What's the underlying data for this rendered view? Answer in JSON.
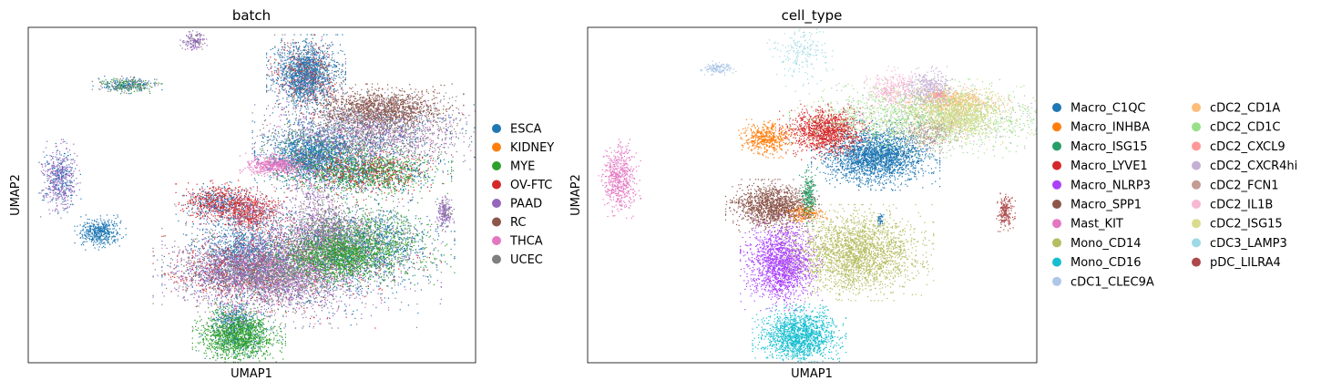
{
  "chart_data": [
    {
      "type": "scatter",
      "title": "batch",
      "xlabel": "UMAP1",
      "ylabel": "UMAP2",
      "grid": false,
      "ticks": "none",
      "legend_placement": "right",
      "legend_columns": 1,
      "series": [
        {
          "name": "ESCA",
          "color": "#1f77b4"
        },
        {
          "name": "KIDNEY",
          "color": "#ff7f0e"
        },
        {
          "name": "MYE",
          "color": "#2ca02c"
        },
        {
          "name": "OV-FTC",
          "color": "#d62728"
        },
        {
          "name": "PAAD",
          "color": "#9467bd"
        },
        {
          "name": "RC",
          "color": "#8c564b"
        },
        {
          "name": "THCA",
          "color": "#e377c2"
        },
        {
          "name": "UCEC",
          "color": "#7f7f7f"
        }
      ],
      "clusters": [
        {
          "c": 0.62,
          "r": 0.14,
          "sx": 0.034,
          "sy": 0.046,
          "n": 2200,
          "mix": {
            "ESCA": 0.6,
            "UCEC": 0.2,
            "OV-FTC": 0.12,
            "PAAD": 0.08
          }
        },
        {
          "c": 0.48,
          "r": 0.67,
          "sx": 0.05,
          "sy": 0.048,
          "n": 1000,
          "mix": {
            "ESCA": 0.9,
            "PAAD": 0.1
          }
        },
        {
          "c": 0.64,
          "r": 0.38,
          "sx": 0.052,
          "sy": 0.038,
          "n": 2000,
          "mix": {
            "ESCA": 0.8,
            "MYE": 0.12,
            "UCEC": 0.08
          }
        },
        {
          "c": 0.5,
          "r": 0.55,
          "sx": 0.032,
          "sy": 0.028,
          "n": 800,
          "mix": {
            "OV-FTC": 0.55,
            "PAAD": 0.25,
            "UCEC": 0.2
          }
        },
        {
          "c": 0.75,
          "r": 0.43,
          "sx": 0.075,
          "sy": 0.032,
          "n": 1900,
          "mix": {
            "MYE": 0.45,
            "OV-FTC": 0.3,
            "ESCA": 0.25
          }
        },
        {
          "c": 0.61,
          "r": 0.7,
          "sx": 0.12,
          "sy": 0.075,
          "n": 2600,
          "mix": {
            "PAAD": 0.35,
            "ESCA": 0.25,
            "UCEC": 0.2,
            "OV-FTC": 0.1,
            "THCA": 0.1
          }
        },
        {
          "c": 0.64,
          "r": 0.57,
          "sx": 0.035,
          "sy": 0.12,
          "n": 700,
          "mix": {
            "PAAD": 0.5,
            "UCEC": 0.3,
            "THCA": 0.2
          }
        },
        {
          "c": 0.77,
          "r": 0.64,
          "sx": 0.07,
          "sy": 0.05,
          "n": 1600,
          "mix": {
            "MYE": 0.45,
            "ESCA": 0.4,
            "UCEC": 0.15
          }
        },
        {
          "c": 0.22,
          "r": 0.17,
          "sx": 0.03,
          "sy": 0.01,
          "n": 400,
          "mix": {
            "ESCA": 0.4,
            "MYE": 0.25,
            "UCEC": 0.35
          }
        },
        {
          "c": 0.37,
          "r": 0.04,
          "sx": 0.012,
          "sy": 0.012,
          "n": 150,
          "mix": {
            "PAAD": 0.75,
            "UCEC": 0.25
          }
        },
        {
          "c": 0.76,
          "r": 0.31,
          "sx": 0.1,
          "sy": 0.045,
          "n": 2300,
          "mix": {
            "UCEC": 0.45,
            "PAAD": 0.3,
            "ESCA": 0.15,
            "THCA": 0.1
          }
        },
        {
          "c": 0.79,
          "r": 0.24,
          "sx": 0.07,
          "sy": 0.028,
          "n": 1300,
          "mix": {
            "RC": 0.9,
            "UCEC": 0.1
          }
        },
        {
          "c": 0.55,
          "r": 0.41,
          "sx": 0.03,
          "sy": 0.014,
          "n": 500,
          "mix": {
            "THCA": 1.0
          }
        },
        {
          "c": 0.46,
          "r": 0.73,
          "sx": 0.07,
          "sy": 0.045,
          "n": 1900,
          "mix": {
            "PAAD": 0.5,
            "UCEC": 0.3,
            "OV-FTC": 0.2
          }
        },
        {
          "c": 0.56,
          "r": 0.73,
          "sx": 0.06,
          "sy": 0.05,
          "n": 1700,
          "mix": {
            "UCEC": 0.5,
            "PAAD": 0.3,
            "THCA": 0.2
          }
        },
        {
          "c": 0.07,
          "r": 0.45,
          "sx": 0.018,
          "sy": 0.045,
          "n": 600,
          "mix": {
            "PAAD": 0.7,
            "ESCA": 0.3
          }
        },
        {
          "c": 0.16,
          "r": 0.61,
          "sx": 0.022,
          "sy": 0.02,
          "n": 450,
          "mix": {
            "ESCA": 1.0
          }
        },
        {
          "c": 0.67,
          "r": 0.61,
          "sx": 0.04,
          "sy": 0.035,
          "n": 700,
          "mix": {
            "UCEC": 0.7,
            "PAAD": 0.3
          }
        },
        {
          "c": 0.46,
          "r": 0.87,
          "sx": 0.025,
          "sy": 0.03,
          "n": 500,
          "mix": {
            "ESCA": 0.6,
            "THCA": 0.2,
            "MYE": 0.2
          }
        },
        {
          "c": 0.47,
          "r": 0.92,
          "sx": 0.04,
          "sy": 0.033,
          "n": 1500,
          "mix": {
            "MYE": 0.9,
            "ESCA": 0.1
          }
        },
        {
          "c": 0.93,
          "r": 0.55,
          "sx": 0.008,
          "sy": 0.022,
          "n": 200,
          "mix": {
            "PAAD": 0.7,
            "UCEC": 0.3
          }
        },
        {
          "c": 0.69,
          "r": 0.68,
          "sx": 0.06,
          "sy": 0.035,
          "n": 1500,
          "mix": {
            "MYE": 0.85,
            "ESCA": 0.1,
            "RC": 0.05
          }
        },
        {
          "c": 0.42,
          "r": 0.52,
          "sx": 0.035,
          "sy": 0.025,
          "n": 800,
          "mix": {
            "OV-FTC": 0.6,
            "ESCA": 0.3,
            "PAAD": 0.1
          }
        }
      ]
    },
    {
      "type": "scatter",
      "title": "cell_type",
      "xlabel": "UMAP1",
      "ylabel": "UMAP2",
      "grid": false,
      "ticks": "none",
      "legend_placement": "right",
      "legend_columns": 2,
      "series": [
        {
          "name": "Macro_C1QC",
          "color": "#1f77b4"
        },
        {
          "name": "Macro_INHBA",
          "color": "#ff7f0e"
        },
        {
          "name": "Macro_ISG15",
          "color": "#279e68"
        },
        {
          "name": "Macro_LYVE1",
          "color": "#d62728"
        },
        {
          "name": "Macro_NLRP3",
          "color": "#aa40fc"
        },
        {
          "name": "Macro_SPP1",
          "color": "#8c564b"
        },
        {
          "name": "Mast_KIT",
          "color": "#e377c2"
        },
        {
          "name": "Mono_CD14",
          "color": "#b5bd61"
        },
        {
          "name": "Mono_CD16",
          "color": "#17becf"
        },
        {
          "name": "cDC1_CLEC9A",
          "color": "#aec7e8"
        },
        {
          "name": "cDC2_CD1A",
          "color": "#ffbb78"
        },
        {
          "name": "cDC2_CD1C",
          "color": "#98df8a"
        },
        {
          "name": "cDC2_CXCL9",
          "color": "#ff9896"
        },
        {
          "name": "cDC2_CXCR4hi",
          "color": "#c5b0d5"
        },
        {
          "name": "cDC2_FCN1",
          "color": "#c49c94"
        },
        {
          "name": "cDC2_IL1B",
          "color": "#f7b6d2"
        },
        {
          "name": "cDC2_ISG15",
          "color": "#dbdb8d"
        },
        {
          "name": "cDC3_LAMP3",
          "color": "#9edae5"
        },
        {
          "name": "pDC_LILRA4",
          "color": "#ad494a"
        }
      ],
      "clusters": [
        {
          "c": 0.64,
          "r": 0.38,
          "sx": 0.055,
          "sy": 0.04,
          "n": 2400,
          "mix": {
            "Macro_C1QC": 1.0
          }
        },
        {
          "c": 0.4,
          "r": 0.33,
          "sx": 0.025,
          "sy": 0.022,
          "n": 500,
          "mix": {
            "Macro_INHBA": 1.0
          }
        },
        {
          "c": 0.48,
          "r": 0.55,
          "sx": 0.02,
          "sy": 0.012,
          "n": 250,
          "mix": {
            "Macro_INHBA": 1.0
          }
        },
        {
          "c": 0.49,
          "r": 0.5,
          "sx": 0.008,
          "sy": 0.035,
          "n": 250,
          "mix": {
            "Macro_ISG15": 1.0
          }
        },
        {
          "c": 0.53,
          "r": 0.31,
          "sx": 0.04,
          "sy": 0.032,
          "n": 1200,
          "mix": {
            "Macro_LYVE1": 1.0
          }
        },
        {
          "c": 0.43,
          "r": 0.7,
          "sx": 0.035,
          "sy": 0.055,
          "n": 1800,
          "mix": {
            "Macro_NLRP3": 1.0
          }
        },
        {
          "c": 0.41,
          "r": 0.53,
          "sx": 0.04,
          "sy": 0.03,
          "n": 1300,
          "mix": {
            "Macro_SPP1": 1.0
          }
        },
        {
          "c": 0.07,
          "r": 0.45,
          "sx": 0.018,
          "sy": 0.045,
          "n": 600,
          "mix": {
            "Mast_KIT": 1.0
          }
        },
        {
          "c": 0.6,
          "r": 0.67,
          "sx": 0.065,
          "sy": 0.055,
          "n": 2400,
          "mix": {
            "Mono_CD14": 1.0
          }
        },
        {
          "c": 0.47,
          "r": 0.92,
          "sx": 0.04,
          "sy": 0.037,
          "n": 1600,
          "mix": {
            "Mono_CD16": 1.0
          }
        },
        {
          "c": 0.29,
          "r": 0.12,
          "sx": 0.015,
          "sy": 0.008,
          "n": 150,
          "mix": {
            "cDC1_CLEC9A": 1.0
          }
        },
        {
          "c": 0.81,
          "r": 0.22,
          "sx": 0.05,
          "sy": 0.02,
          "n": 600,
          "mix": {
            "cDC2_CD1A": 1.0
          }
        },
        {
          "c": 0.76,
          "r": 0.27,
          "sx": 0.12,
          "sy": 0.045,
          "n": 2200,
          "mix": {
            "cDC2_CD1C": 0.7,
            "cDC2_ISG15": 0.15,
            "cDC2_CXCR4hi": 0.15
          }
        },
        {
          "c": 0.78,
          "r": 0.2,
          "sx": 0.008,
          "sy": 0.005,
          "n": 80,
          "mix": {
            "cDC2_CXCL9": 1.0
          }
        },
        {
          "c": 0.76,
          "r": 0.18,
          "sx": 0.025,
          "sy": 0.025,
          "n": 400,
          "mix": {
            "cDC2_CXCR4hi": 1.0
          }
        },
        {
          "c": 0.76,
          "r": 0.31,
          "sx": 0.03,
          "sy": 0.025,
          "n": 300,
          "mix": {
            "cDC2_FCN1": 1.0
          }
        },
        {
          "c": 0.68,
          "r": 0.18,
          "sx": 0.025,
          "sy": 0.025,
          "n": 300,
          "mix": {
            "cDC2_IL1B": 1.0
          }
        },
        {
          "c": 0.83,
          "r": 0.26,
          "sx": 0.04,
          "sy": 0.03,
          "n": 800,
          "mix": {
            "cDC2_ISG15": 1.0
          }
        },
        {
          "c": 0.47,
          "r": 0.07,
          "sx": 0.03,
          "sy": 0.04,
          "n": 200,
          "mix": {
            "cDC3_LAMP3": 1.0
          }
        },
        {
          "c": 0.93,
          "r": 0.55,
          "sx": 0.008,
          "sy": 0.022,
          "n": 200,
          "mix": {
            "pDC_LILRA4": 1.0
          }
        },
        {
          "c": 0.65,
          "r": 0.57,
          "sx": 0.003,
          "sy": 0.01,
          "n": 40,
          "mix": {
            "Macro_C1QC": 1.0
          }
        }
      ]
    }
  ]
}
